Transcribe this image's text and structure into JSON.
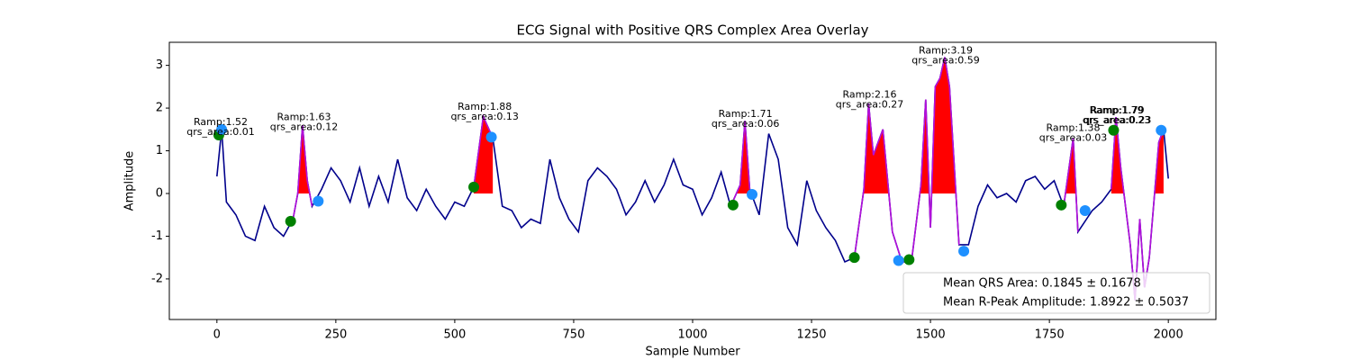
{
  "chart_data": {
    "type": "line",
    "title": "ECG Signal with Positive QRS Complex Area Overlay",
    "xlabel": "Sample Number",
    "ylabel": "Amplitude",
    "xlim": [
      -100,
      2100
    ],
    "ylim": [
      -2.95,
      3.54
    ],
    "xticks": [
      0,
      250,
      500,
      750,
      1000,
      1250,
      1500,
      1750,
      2000
    ],
    "yticks": [
      -2,
      -1,
      0,
      1,
      2,
      3
    ],
    "x": [
      0,
      10,
      20,
      40,
      60,
      80,
      100,
      120,
      140,
      160,
      170,
      180,
      190,
      200,
      220,
      240,
      260,
      280,
      300,
      320,
      340,
      360,
      380,
      400,
      420,
      440,
      460,
      480,
      500,
      520,
      540,
      560,
      580,
      600,
      620,
      640,
      660,
      680,
      700,
      720,
      740,
      760,
      780,
      800,
      820,
      840,
      860,
      880,
      900,
      920,
      940,
      960,
      980,
      1000,
      1020,
      1040,
      1060,
      1080,
      1100,
      1110,
      1120,
      1140,
      1160,
      1180,
      1200,
      1220,
      1240,
      1260,
      1280,
      1300,
      1320,
      1340,
      1360,
      1370,
      1380,
      1400,
      1420,
      1440,
      1460,
      1480,
      1490,
      1500,
      1510,
      1520,
      1530,
      1540,
      1560,
      1580,
      1600,
      1620,
      1640,
      1660,
      1680,
      1700,
      1720,
      1740,
      1760,
      1780,
      1800,
      1810,
      1840,
      1860,
      1880,
      1890,
      1900,
      1920,
      1930,
      1940,
      1950,
      1960,
      1980,
      1990,
      2000
    ],
    "series": [
      {
        "color": "#00008b",
        "values": [
          0.4,
          1.5,
          -0.2,
          -0.5,
          -1.0,
          -1.1,
          -0.3,
          -0.8,
          -1.0,
          -0.6,
          0.0,
          1.6,
          0.3,
          -0.3,
          0.1,
          0.6,
          0.3,
          -0.2,
          0.6,
          -0.3,
          0.4,
          -0.2,
          0.8,
          -0.1,
          -0.4,
          0.1,
          -0.3,
          -0.6,
          -0.2,
          -0.3,
          0.15,
          1.8,
          1.3,
          -0.3,
          -0.4,
          -0.8,
          -0.6,
          -0.7,
          0.8,
          -0.1,
          -0.6,
          -0.9,
          0.3,
          0.6,
          0.4,
          0.1,
          -0.5,
          -0.2,
          0.3,
          -0.2,
          0.2,
          0.8,
          0.2,
          0.1,
          -0.5,
          -0.1,
          0.5,
          -0.3,
          0.2,
          1.7,
          0.1,
          -0.5,
          1.4,
          0.8,
          -0.8,
          -1.2,
          0.3,
          -0.4,
          -0.8,
          -1.1,
          -1.6,
          -1.5,
          0.1,
          2.1,
          0.9,
          1.5,
          -0.9,
          -1.6,
          -1.6,
          0.2,
          2.2,
          -0.8,
          2.5,
          2.7,
          3.19,
          2.5,
          -1.2,
          -1.2,
          -0.3,
          0.2,
          -0.1,
          0.0,
          -0.2,
          0.3,
          0.4,
          0.1,
          0.3,
          -0.3,
          1.3,
          -0.9,
          -0.4,
          -0.2,
          0.1,
          1.79,
          0.6,
          -1.2,
          -2.5,
          -0.6,
          -2.2,
          -1.5,
          1.2,
          1.5,
          0.35
        ]
      },
      {
        "color": "#b30fdb",
        "fill_positive": "#ff0000",
        "values": [
          null,
          null,
          null,
          null,
          null,
          null,
          null,
          null,
          null,
          -0.6,
          0.0,
          1.6,
          0.3,
          -0.3,
          null,
          null,
          null,
          null,
          null,
          null,
          null,
          null,
          null,
          null,
          null,
          null,
          null,
          null,
          null,
          null,
          0.15,
          1.8,
          1.3,
          null,
          null,
          null,
          null,
          null,
          null,
          null,
          null,
          null,
          null,
          null,
          null,
          null,
          null,
          null,
          null,
          null,
          null,
          null,
          null,
          null,
          null,
          null,
          null,
          -0.3,
          0.2,
          1.7,
          0.1,
          null,
          null,
          null,
          null,
          null,
          null,
          null,
          null,
          null,
          null,
          -1.5,
          0.1,
          2.1,
          0.9,
          1.5,
          -0.9,
          -1.6,
          -1.6,
          0.2,
          2.2,
          -0.8,
          2.5,
          2.7,
          3.19,
          2.5,
          -1.2,
          null,
          null,
          null,
          null,
          null,
          null,
          null,
          null,
          null,
          null,
          -0.3,
          1.3,
          -0.9,
          null,
          null,
          0.1,
          1.79,
          0.6,
          -1.2,
          -2.5,
          -0.6,
          -2.2,
          -1.5,
          1.2,
          1.5,
          null
        ]
      }
    ],
    "markers": [
      {
        "color": "#008000",
        "x": [
          4,
          155,
          540,
          1085,
          1340,
          1455,
          1775,
          1885
        ],
        "values": [
          1.37,
          -0.65,
          0.15,
          -0.27,
          -1.5,
          -1.55,
          -0.27,
          1.48
        ]
      },
      {
        "color": "#1e90ff",
        "x": [
          10,
          213,
          577,
          1125,
          1433,
          1570,
          1825,
          1985
        ],
        "values": [
          1.5,
          -0.18,
          1.32,
          -0.02,
          -1.57,
          -1.35,
          -0.4,
          1.48
        ]
      }
    ],
    "annotations": [
      {
        "x": 8,
        "y": 1.52,
        "lines": [
          "Ramp:1.52",
          "qrs_area:0.01"
        ]
      },
      {
        "x": 183,
        "y": 1.63,
        "lines": [
          "Ramp:1.63",
          "qrs_area:0.12"
        ]
      },
      {
        "x": 563,
        "y": 1.88,
        "lines": [
          "Ramp:1.88",
          "qrs_area:0.13"
        ]
      },
      {
        "x": 1111,
        "y": 1.71,
        "lines": [
          "Ramp:1.71",
          "qrs_area:0.06"
        ]
      },
      {
        "x": 1372,
        "y": 2.16,
        "lines": [
          "Ramp:2.16",
          "qrs_area:0.27"
        ]
      },
      {
        "x": 1532,
        "y": 3.19,
        "lines": [
          "Ramp:3.19",
          "qrs_area:0.59"
        ]
      },
      {
        "x": 1800,
        "y": 1.38,
        "lines": [
          "Ramp:1.38",
          "qrs_area:0.03"
        ]
      },
      {
        "x": 1891,
        "y": 1.79,
        "lines": [
          "Ramp:1.79",
          "qrs_area:0.23"
        ]
      },
      {
        "x": 1893,
        "y": 1.79,
        "lines": [
          "Ramp:1.79",
          "qrs_area:0.23"
        ]
      }
    ],
    "legend": {
      "loc": "lower right",
      "entries": [
        "Mean QRS Area: 0.1845 ± 0.1678",
        "Mean R-Peak Amplitude: 1.8922 ± 0.5037"
      ]
    }
  }
}
